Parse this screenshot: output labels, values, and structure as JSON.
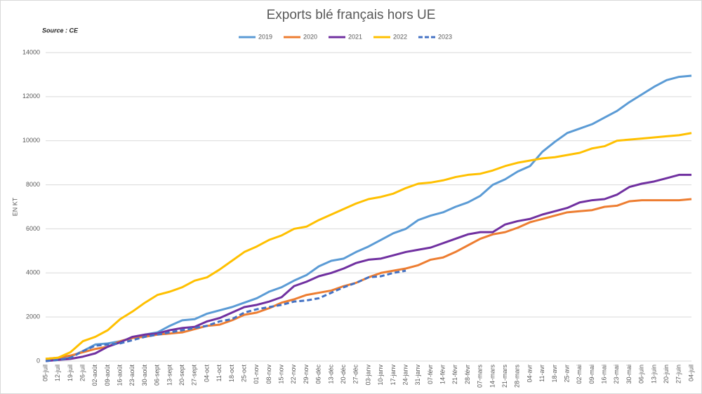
{
  "chart_data": {
    "type": "line",
    "title": "Exports blé français hors UE",
    "subtitle": "Source : CE",
    "y_label": "EN KT",
    "categories": [
      "05-juil",
      "12-juil",
      "19-juil",
      "26-juil",
      "02-août",
      "09-août",
      "16-août",
      "23-août",
      "30-août",
      "06-sept",
      "13-sept",
      "20-sept",
      "27-sept",
      "04-oct",
      "11-oct",
      "18-oct",
      "25-oct",
      "01-nov",
      "08-nov",
      "15-nov",
      "22-nov",
      "29-nov",
      "06-déc",
      "13-déc",
      "20-déc",
      "27-déc",
      "03-janv",
      "10-janv",
      "17-janv",
      "24-janv",
      "31-janv",
      "07-févr",
      "14-févr",
      "21-févr",
      "28-févr",
      "07-mars",
      "14-mars",
      "21-mars",
      "28-mars",
      "04-avr",
      "11-avr",
      "18-avr",
      "25-avr",
      "02-mai",
      "09-mai",
      "16-mai",
      "23-mai",
      "30-mai",
      "06-juin",
      "13-juin",
      "20-juin",
      "27-juin",
      "04-juil"
    ],
    "series": [
      {
        "name": "2019",
        "color": "#5b9bd5",
        "values": [
          50,
          100,
          200,
          450,
          750,
          800,
          900,
          1050,
          1200,
          1300,
          1600,
          1850,
          1900,
          2150,
          2300,
          2450,
          2650,
          2850,
          3150,
          3350,
          3650,
          3900,
          4300,
          4550,
          4650,
          4950,
          5200,
          5500,
          5800,
          6000,
          6400,
          6600,
          6750,
          7000,
          7200,
          7500,
          8000,
          8250,
          8600,
          8850,
          9500,
          9950,
          10350,
          10550,
          10750,
          11050,
          11350,
          11750,
          12100,
          12450,
          12750,
          12900,
          12950
        ]
      },
      {
        "name": "2020",
        "color": "#ed7d31",
        "values": [
          100,
          150,
          250,
          400,
          550,
          650,
          900,
          1050,
          1100,
          1200,
          1250,
          1300,
          1450,
          1600,
          1650,
          1850,
          2100,
          2200,
          2400,
          2650,
          2800,
          3000,
          3100,
          3200,
          3400,
          3550,
          3800,
          4000,
          4100,
          4200,
          4350,
          4600,
          4700,
          4950,
          5250,
          5550,
          5750,
          5850,
          6050,
          6300,
          6450,
          6600,
          6750,
          6800,
          6850,
          7000,
          7050,
          7250,
          7300,
          7300,
          7300,
          7300,
          7350
        ]
      },
      {
        "name": "2021",
        "color": "#7030a0",
        "values": [
          0,
          50,
          100,
          200,
          350,
          650,
          850,
          1100,
          1200,
          1250,
          1400,
          1500,
          1550,
          1800,
          1950,
          2200,
          2450,
          2550,
          2700,
          2900,
          3400,
          3600,
          3850,
          4000,
          4200,
          4450,
          4600,
          4650,
          4800,
          4950,
          5050,
          5150,
          5350,
          5550,
          5750,
          5850,
          5850,
          6200,
          6350,
          6450,
          6650,
          6800,
          6950,
          7200,
          7300,
          7350,
          7550,
          7900,
          8050,
          8150,
          8300,
          8450,
          8450
        ]
      },
      {
        "name": "2022",
        "color": "#ffc000",
        "values": [
          100,
          150,
          400,
          900,
          1100,
          1400,
          1900,
          2250,
          2650,
          3000,
          3150,
          3350,
          3650,
          3800,
          4150,
          4550,
          4950,
          5200,
          5500,
          5700,
          6000,
          6100,
          6400,
          6650,
          6900,
          7150,
          7350,
          7450,
          7600,
          7850,
          8050,
          8100,
          8200,
          8350,
          8450,
          8500,
          8650,
          8850,
          9000,
          9100,
          9200,
          9250,
          9350,
          9450,
          9650,
          9750,
          10000,
          10050,
          10100,
          10150,
          10200,
          10250,
          10350
        ]
      },
      {
        "name": "2023",
        "color": "#4472c4",
        "dashed": true,
        "values": [
          0,
          50,
          150,
          450,
          700,
          750,
          800,
          950,
          1100,
          1200,
          1300,
          1400,
          1500,
          1600,
          1800,
          1900,
          2200,
          2350,
          2450,
          2550,
          2700,
          2750,
          2850,
          3100,
          3350,
          3550,
          3800,
          3850,
          4000,
          4100,
          null,
          null,
          null,
          null,
          null,
          null,
          null,
          null,
          null,
          null,
          null,
          null,
          null,
          null,
          null,
          null,
          null,
          null,
          null,
          null,
          null,
          null,
          null
        ]
      }
    ],
    "ylim": [
      0,
      14000
    ],
    "yticks": [
      0,
      2000,
      4000,
      6000,
      8000,
      10000,
      12000,
      14000
    ],
    "grid": true,
    "legend": "top"
  }
}
